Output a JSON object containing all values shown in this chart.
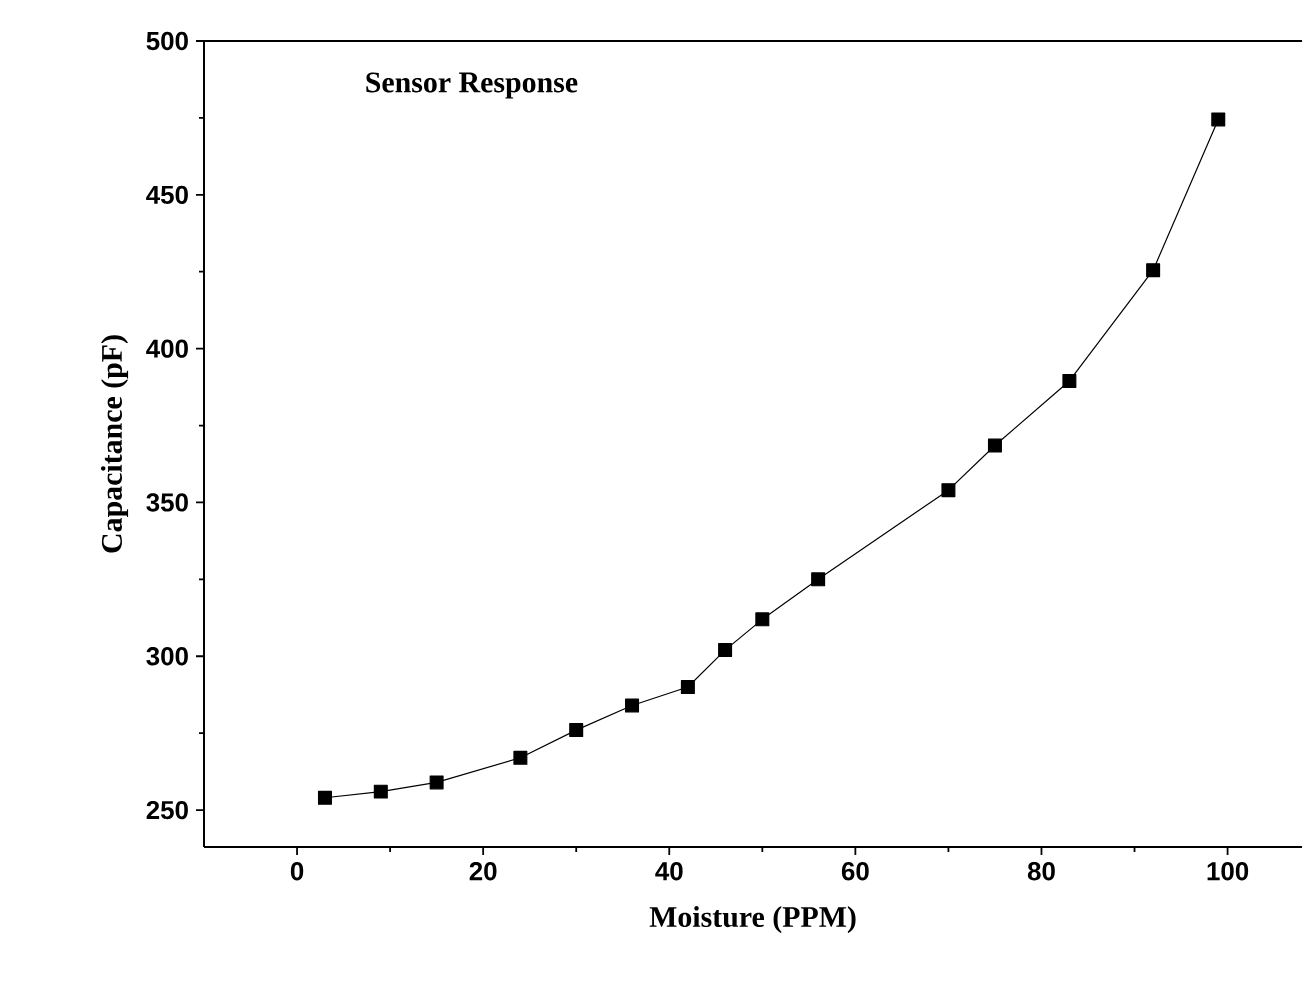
{
  "chart_data": {
    "type": "line",
    "title": "Sensor Response",
    "xlabel": "Moisture (PPM)",
    "ylabel": "Capacitance (pF)",
    "x": [
      3,
      9,
      15,
      24,
      30,
      36,
      42,
      46,
      50,
      56,
      70,
      75,
      83,
      92,
      99
    ],
    "series": [
      {
        "color": "#000000",
        "values": [
          254,
          256,
          259,
          267,
          276,
          284,
          290,
          302,
          312,
          325,
          354,
          368.5,
          389.5,
          425.5,
          474.5
        ]
      }
    ],
    "xlim": [
      -10,
      108
    ],
    "ylim": [
      238,
      500
    ],
    "xticks": [
      0,
      20,
      40,
      60,
      80,
      100
    ],
    "yticks": [
      250,
      300,
      350,
      400,
      450,
      500
    ],
    "marker": "square",
    "line_style": "solid",
    "grid": false
  }
}
